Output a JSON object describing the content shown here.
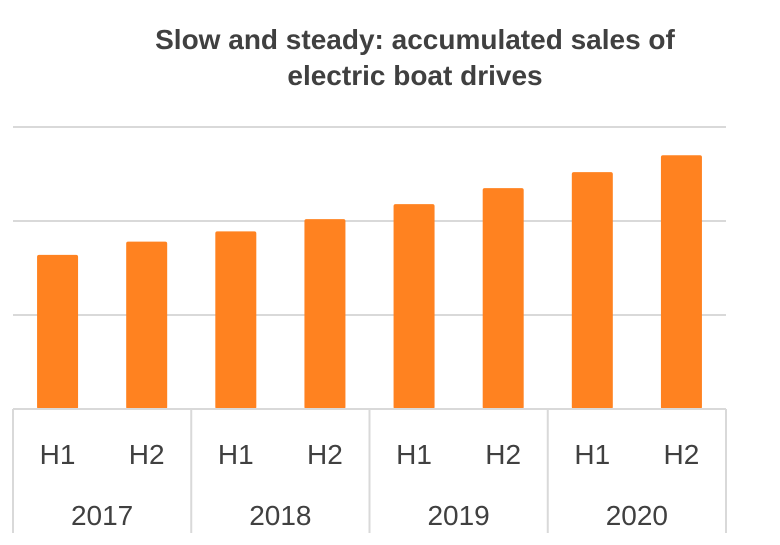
{
  "chart_data": {
    "type": "bar",
    "title_lines": [
      "Slow and steady: accumulated sales of",
      "electric boat drives"
    ],
    "categories": [
      "H1",
      "H2",
      "H1",
      "H2",
      "H1",
      "H2",
      "H1",
      "H2"
    ],
    "groups": [
      "2017",
      "2018",
      "2019",
      "2020"
    ],
    "values": [
      1.64,
      1.78,
      1.89,
      2.02,
      2.18,
      2.35,
      2.52,
      2.7
    ],
    "ylim": [
      0,
      3
    ],
    "ytick_step": 1,
    "xlabel": "",
    "ylabel": "",
    "grid": true,
    "legend": "none",
    "bar_color": "#FF8220",
    "grid_color": "#D9D9D9",
    "text_color": "#404040"
  }
}
